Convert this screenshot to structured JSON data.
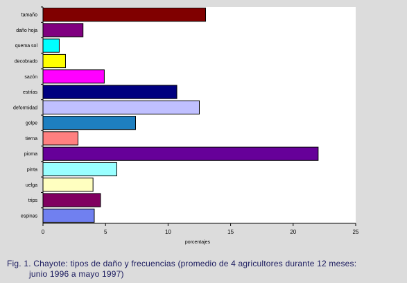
{
  "chart_data": {
    "type": "bar",
    "orientation": "horizontal",
    "categories": [
      "tamaño",
      "daño hoja",
      "quema sol",
      "decobrado",
      "sazón",
      "estrías",
      "deformidad",
      "golpe",
      "tierna",
      "pioma",
      "pinta",
      "uelga",
      "trips",
      "espinas"
    ],
    "values": [
      13.0,
      3.2,
      1.3,
      1.8,
      4.9,
      10.7,
      12.5,
      7.4,
      2.8,
      22.0,
      5.9,
      4.0,
      4.6,
      4.1
    ],
    "colors": [
      "#800000",
      "#800080",
      "#00ffff",
      "#ffff00",
      "#ff00ff",
      "#000080",
      "#c0c0ff",
      "#1e7fc0",
      "#ff8080",
      "#660099",
      "#99ffff",
      "#ffffc0",
      "#800060",
      "#7080f0"
    ],
    "xlabel": "porcentajes",
    "ylabel": "",
    "xlim": [
      0,
      25
    ],
    "ticks": [
      "0",
      "5",
      "10",
      "15",
      "20",
      "25"
    ],
    "grid": false,
    "legend": "none"
  },
  "caption": {
    "line1": "Fig. 1.  Chayote: tipos de daño y frecuencias (promedio de 4 agricultores durante 12 meses:",
    "line2": "junio 1996 a mayo 1997)"
  }
}
